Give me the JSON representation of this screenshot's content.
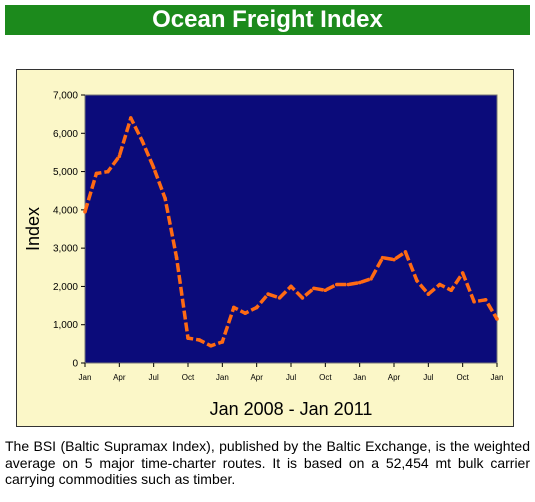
{
  "page": {
    "title": "Ocean Freight Index",
    "caption": "The BSI (Baltic Supramax Index), published by the Baltic Exchange, is the weighted average on 5 major time-charter routes. It is based on a 52,454 mt bulk carrier carrying commodities such as timber."
  },
  "colors": {
    "banner": "#1c8a1c",
    "chart_bg": "#fbf7c8",
    "plot_bg": "#0b0b7a",
    "line": "#ff6a13"
  },
  "chart_data": {
    "type": "line",
    "title": "",
    "xlabel": "Jan 2008 - Jan 2011",
    "ylabel": "Index",
    "ylim": [
      0,
      7000
    ],
    "y_ticks": [
      "0",
      "1,000",
      "2,000",
      "3,000",
      "4,000",
      "5,000",
      "6,000",
      "7,000"
    ],
    "x_ticks": [
      "Jan",
      "Apr",
      "Jul",
      "Oct",
      "Jan",
      "Apr",
      "Jul",
      "Oct",
      "Jan",
      "Apr",
      "Jul",
      "Oct",
      "Jan"
    ],
    "grid": false,
    "legend": "none",
    "series": [
      {
        "values": [
          3950,
          4950,
          5000,
          5400,
          6400,
          5800,
          5100,
          4300,
          2750,
          650,
          600,
          450,
          550,
          1450,
          1300,
          1450,
          1800,
          1700,
          2000,
          1700,
          1950,
          1900,
          2050,
          2050,
          2100,
          2200,
          2750,
          2700,
          2900,
          2150,
          1800,
          2050,
          1900,
          2350,
          1600,
          1650,
          1150
        ]
      }
    ]
  }
}
